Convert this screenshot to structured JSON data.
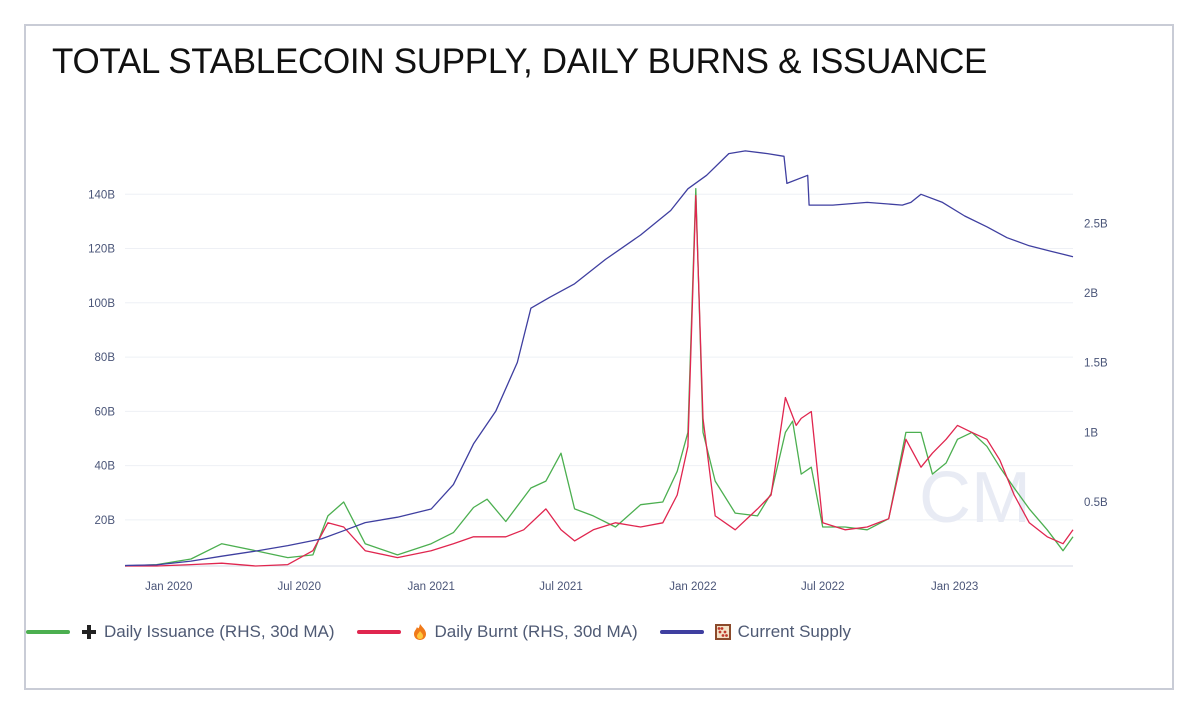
{
  "chart_data": {
    "type": "line",
    "title": "TOTAL STABLECOIN SUPPLY, DAILY BURNS & ISSUANCE",
    "watermark": "CM",
    "x_ticks": [
      "Jan 2020",
      "Jul 2020",
      "Jan 2021",
      "Jul 2021",
      "Jan 2022",
      "Jul 2022",
      "Jan 2023"
    ],
    "x_range": [
      "2019-11-01",
      "2023-06-15"
    ],
    "left_axis": {
      "ticks": [
        "20B",
        "40B",
        "60B",
        "80B",
        "100B",
        "120B",
        "140B"
      ],
      "values": [
        20,
        40,
        60,
        80,
        100,
        120,
        140
      ],
      "ylim": [
        3,
        160
      ],
      "unit": "B"
    },
    "right_axis": {
      "ticks": [
        "0.5B",
        "1B",
        "1.5B",
        "2B",
        "2.5B"
      ],
      "values": [
        0.5,
        1,
        1.5,
        2,
        2.5
      ],
      "ylim": [
        0.04,
        3.1
      ],
      "unit": "B"
    },
    "series": [
      {
        "name": "Daily Issuance (RHS, 30d MA)",
        "color": "#4caf50",
        "axis": "right",
        "icon": "plus",
        "x": [
          "2019-11-01",
          "2019-12-15",
          "2020-02-01",
          "2020-03-15",
          "2020-05-01",
          "2020-06-15",
          "2020-07-20",
          "2020-08-10",
          "2020-09-01",
          "2020-10-01",
          "2020-11-15",
          "2021-01-01",
          "2021-02-01",
          "2021-03-01",
          "2021-03-20",
          "2021-04-15",
          "2021-05-20",
          "2021-06-10",
          "2021-07-01",
          "2021-07-20",
          "2021-08-15",
          "2021-09-15",
          "2021-10-20",
          "2021-11-20",
          "2021-12-10",
          "2021-12-25",
          "2022-01-05",
          "2022-01-15",
          "2022-02-01",
          "2022-03-01",
          "2022-04-01",
          "2022-04-20",
          "2022-05-10",
          "2022-05-20",
          "2022-06-01",
          "2022-06-15",
          "2022-07-01",
          "2022-08-01",
          "2022-09-01",
          "2022-10-01",
          "2022-10-25",
          "2022-11-15",
          "2022-12-01",
          "2022-12-20",
          "2023-01-05",
          "2023-01-25",
          "2023-02-15",
          "2023-03-05",
          "2023-03-25",
          "2023-04-15",
          "2023-05-10",
          "2023-06-01",
          "2023-06-15"
        ],
        "values": [
          0.04,
          0.05,
          0.09,
          0.2,
          0.15,
          0.1,
          0.12,
          0.4,
          0.5,
          0.2,
          0.12,
          0.2,
          0.28,
          0.46,
          0.52,
          0.36,
          0.6,
          0.65,
          0.85,
          0.45,
          0.4,
          0.32,
          0.48,
          0.5,
          0.72,
          1.0,
          2.75,
          1.0,
          0.65,
          0.42,
          0.4,
          0.56,
          1.0,
          1.08,
          0.7,
          0.75,
          0.32,
          0.32,
          0.3,
          0.38,
          1.0,
          1.0,
          0.7,
          0.78,
          0.95,
          1.0,
          0.9,
          0.75,
          0.6,
          0.45,
          0.3,
          0.15,
          0.25
        ]
      },
      {
        "name": "Daily Burnt (RHS, 30d MA)",
        "color": "#e0264f",
        "axis": "right",
        "icon": "fire",
        "x": [
          "2019-11-01",
          "2019-12-15",
          "2020-02-01",
          "2020-03-15",
          "2020-05-01",
          "2020-06-15",
          "2020-07-20",
          "2020-08-10",
          "2020-09-01",
          "2020-10-01",
          "2020-11-15",
          "2021-01-01",
          "2021-02-01",
          "2021-03-01",
          "2021-04-15",
          "2021-05-10",
          "2021-06-10",
          "2021-07-01",
          "2021-07-20",
          "2021-08-15",
          "2021-09-15",
          "2021-10-20",
          "2021-11-20",
          "2021-12-10",
          "2021-12-25",
          "2022-01-05",
          "2022-01-15",
          "2022-02-01",
          "2022-03-01",
          "2022-04-01",
          "2022-04-20",
          "2022-05-10",
          "2022-05-25",
          "2022-06-01",
          "2022-06-15",
          "2022-07-01",
          "2022-08-01",
          "2022-09-01",
          "2022-10-01",
          "2022-10-25",
          "2022-11-15",
          "2022-12-01",
          "2022-12-20",
          "2023-01-05",
          "2023-01-25",
          "2023-02-15",
          "2023-03-05",
          "2023-03-25",
          "2023-04-15",
          "2023-05-10",
          "2023-06-01",
          "2023-06-15"
        ],
        "values": [
          0.04,
          0.04,
          0.05,
          0.06,
          0.04,
          0.05,
          0.15,
          0.35,
          0.32,
          0.15,
          0.1,
          0.15,
          0.2,
          0.25,
          0.25,
          0.3,
          0.45,
          0.3,
          0.22,
          0.3,
          0.35,
          0.32,
          0.35,
          0.55,
          0.9,
          2.7,
          1.1,
          0.4,
          0.3,
          0.45,
          0.55,
          1.25,
          1.05,
          1.1,
          1.15,
          0.35,
          0.3,
          0.32,
          0.38,
          0.95,
          0.75,
          0.85,
          0.95,
          1.05,
          1.0,
          0.95,
          0.8,
          0.55,
          0.35,
          0.25,
          0.2,
          0.3
        ]
      },
      {
        "name": "Current Supply",
        "color": "#3f3fa0",
        "axis": "left",
        "icon": "abacus",
        "x": [
          "2019-11-01",
          "2019-12-15",
          "2020-02-01",
          "2020-03-15",
          "2020-05-01",
          "2020-06-15",
          "2020-08-01",
          "2020-09-01",
          "2020-10-01",
          "2020-11-15",
          "2021-01-01",
          "2021-02-01",
          "2021-03-01",
          "2021-04-01",
          "2021-05-01",
          "2021-05-20",
          "2021-06-15",
          "2021-07-20",
          "2021-09-01",
          "2021-10-20",
          "2021-12-01",
          "2021-12-25",
          "2022-01-20",
          "2022-02-20",
          "2022-03-15",
          "2022-04-15",
          "2022-05-08",
          "2022-05-12",
          "2022-06-10",
          "2022-06-12",
          "2022-07-15",
          "2022-09-01",
          "2022-10-20",
          "2022-11-01",
          "2022-11-15",
          "2022-12-15",
          "2023-01-15",
          "2023-02-15",
          "2023-03-15",
          "2023-04-15",
          "2023-05-15",
          "2023-06-15"
        ],
        "values": [
          3.2,
          3.4,
          4.8,
          6.6,
          8.5,
          10.5,
          13,
          16,
          19,
          21,
          24,
          33,
          48,
          60,
          78,
          98,
          102,
          107,
          116,
          125,
          134,
          142,
          147,
          155,
          156,
          155,
          154,
          144,
          147,
          136,
          136,
          137,
          136,
          137,
          140,
          137,
          132,
          128,
          124,
          121,
          119,
          117
        ]
      }
    ],
    "legend_position": "bottom-left"
  }
}
